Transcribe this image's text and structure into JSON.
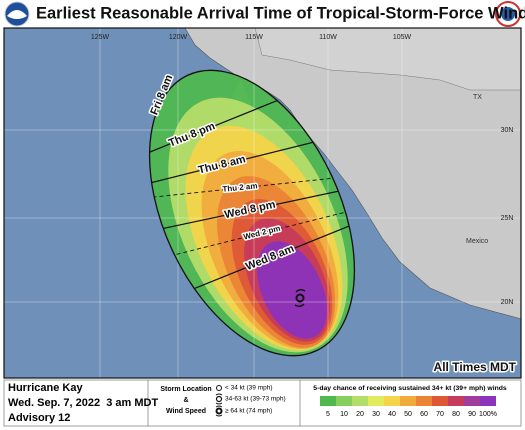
{
  "header": {
    "title": "Earliest Reasonable Arrival Time of Tropical-Storm-Force Winds"
  },
  "map": {
    "longitude_labels": [
      "125W",
      "120W",
      "115W",
      "110W",
      "105W"
    ],
    "latitude_labels": [
      "30N",
      "25N",
      "20N"
    ],
    "place_labels": [
      "TX",
      "Mexico"
    ],
    "arrival_times": [
      "Fri 8 am",
      "Thu 8 pm",
      "Thu 8 am",
      "Thu 2 am",
      "Wed 8 pm",
      "Wed 2 pm",
      "Wed 8 am"
    ],
    "time_zone_note": "All Times MDT"
  },
  "footer": {
    "storm_name": "Hurricane Kay",
    "issued": "Wed. Sep. 7, 2022  3 am MDT",
    "advisory": "Advisory 12",
    "symbol_legend": {
      "title_lines": [
        "Storm Location",
        "&",
        "Wind Speed"
      ],
      "items": [
        "< 34 kt (39 mph)",
        "34-63 kt (39-73 mph)",
        "≥ 64 kt (74 mph)"
      ]
    },
    "probability_legend": {
      "title": "5-day chance of receiving sustained 34+ kt (39+ mph) winds",
      "labels": [
        "5",
        "10",
        "20",
        "30",
        "40",
        "50",
        "60",
        "70",
        "80",
        "90",
        "100%"
      ],
      "colors": [
        "#4fb84f",
        "#86cf5c",
        "#b5dd6a",
        "#e2ea5e",
        "#f3d44a",
        "#f0ab3c",
        "#ea8437",
        "#de5736",
        "#c53c5c",
        "#a03e9c",
        "#8b33bb"
      ]
    }
  }
}
